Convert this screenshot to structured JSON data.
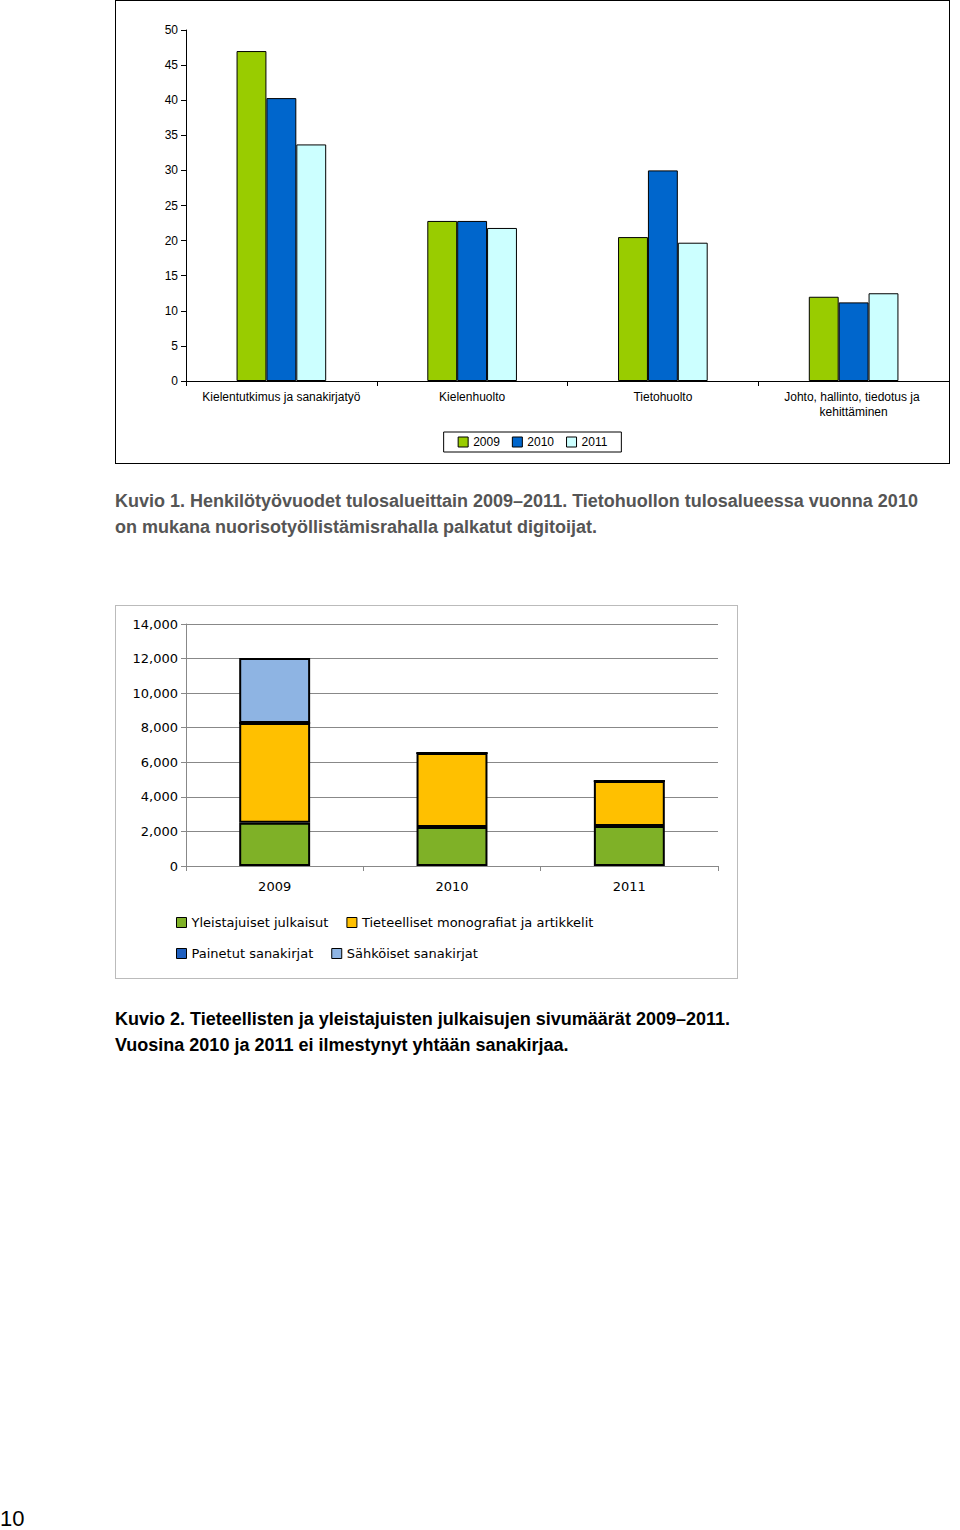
{
  "chart_data": [
    {
      "type": "bar",
      "categories": [
        "Kielentutkimus ja sanakirjatyö",
        "Kielenhuolto",
        "Tietohuolto",
        "Johto, hallinto, tiedotus ja kehittäminen"
      ],
      "series": [
        {
          "name": "2009",
          "color": "#99cc00",
          "values": [
            47,
            22.8,
            20.5,
            12
          ]
        },
        {
          "name": "2010",
          "color": "#0066cc",
          "values": [
            40.3,
            22.8,
            30,
            11.2
          ]
        },
        {
          "name": "2011",
          "color": "#ccffff",
          "values": [
            33.7,
            21.8,
            19.7,
            12.5
          ]
        }
      ],
      "ylim": [
        0,
        50
      ],
      "yticks": [
        0,
        5,
        10,
        15,
        20,
        25,
        30,
        35,
        40,
        45,
        50
      ],
      "grid": false,
      "legend": "bottom"
    },
    {
      "type": "bar",
      "categories": [
        "2009",
        "2010",
        "2011"
      ],
      "series": [
        {
          "name": "Yleistajuiset julkaisut",
          "color": "#7fb127",
          "values": [
            2500,
            2260,
            2310
          ]
        },
        {
          "name": "Tieteelliset monografiat ja artikkelit",
          "color": "#ffc000",
          "values": [
            5770,
            4280,
            2610
          ]
        },
        {
          "name": "Painetut sanakirjat",
          "color": "#1f5fbf",
          "values": [
            0,
            0,
            0
          ]
        },
        {
          "name": "Sähköiset sanakirjat",
          "color": "#8eb4e3",
          "values": [
            3760,
            0,
            0
          ]
        }
      ],
      "ylim": [
        0,
        14000
      ],
      "yticks": [
        0,
        2000,
        4000,
        6000,
        8000,
        10000,
        12000,
        14000
      ],
      "grid": true,
      "stacked": true,
      "legend": "bottom"
    }
  ],
  "captions": [
    [
      "Kuvio 1. Henkilötyövuodet tulosalueittain 2009–2011. Tietohuollon tulosalueessa vuonna 2010 on mukana nuorisotyöllistämisrahalla palkatut digitoijat."
    ],
    [
      "Kuvio 2. Tieteellisten ja yleistajuisten julkaisujen sivumäärät 2009–2011.",
      "Vuosina 2010 ja 2011 ei ilmestynyt yhtään sanakirjaa."
    ]
  ],
  "page_number": "10"
}
